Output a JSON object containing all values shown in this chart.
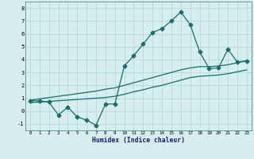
{
  "xlabel": "Humidex (Indice chaleur)",
  "background_color": "#d6eeee",
  "grid_color": "#b8d8d8",
  "line_color": "#1a6e6e",
  "x_values": [
    0,
    1,
    2,
    3,
    4,
    5,
    6,
    7,
    8,
    9,
    10,
    11,
    12,
    13,
    14,
    15,
    16,
    17,
    18,
    19,
    20,
    21,
    22,
    23
  ],
  "y_main": [
    0.8,
    0.8,
    0.7,
    -0.3,
    0.3,
    -0.45,
    -0.7,
    -1.1,
    0.55,
    0.55,
    3.5,
    4.3,
    5.2,
    6.1,
    6.4,
    7.0,
    7.7,
    6.7,
    4.6,
    3.3,
    3.35,
    4.8,
    3.8,
    3.9
  ],
  "y_upper": [
    0.85,
    0.95,
    1.05,
    1.15,
    1.25,
    1.35,
    1.45,
    1.55,
    1.7,
    1.8,
    2.0,
    2.2,
    2.4,
    2.6,
    2.8,
    3.0,
    3.2,
    3.35,
    3.45,
    3.45,
    3.5,
    3.6,
    3.75,
    3.9
  ],
  "y_lower": [
    0.65,
    0.7,
    0.75,
    0.8,
    0.85,
    0.9,
    0.95,
    1.0,
    1.05,
    1.15,
    1.3,
    1.5,
    1.65,
    1.85,
    2.0,
    2.2,
    2.4,
    2.6,
    2.7,
    2.75,
    2.8,
    2.9,
    3.05,
    3.2
  ],
  "ylim": [
    -1.5,
    8.5
  ],
  "xlim": [
    -0.5,
    23.5
  ],
  "yticks": [
    -1,
    0,
    1,
    2,
    3,
    4,
    5,
    6,
    7,
    8
  ],
  "xticks": [
    0,
    1,
    2,
    3,
    4,
    5,
    6,
    7,
    8,
    9,
    10,
    11,
    12,
    13,
    14,
    15,
    16,
    17,
    18,
    19,
    20,
    21,
    22,
    23
  ],
  "markersize": 2.5,
  "linewidth": 0.9
}
